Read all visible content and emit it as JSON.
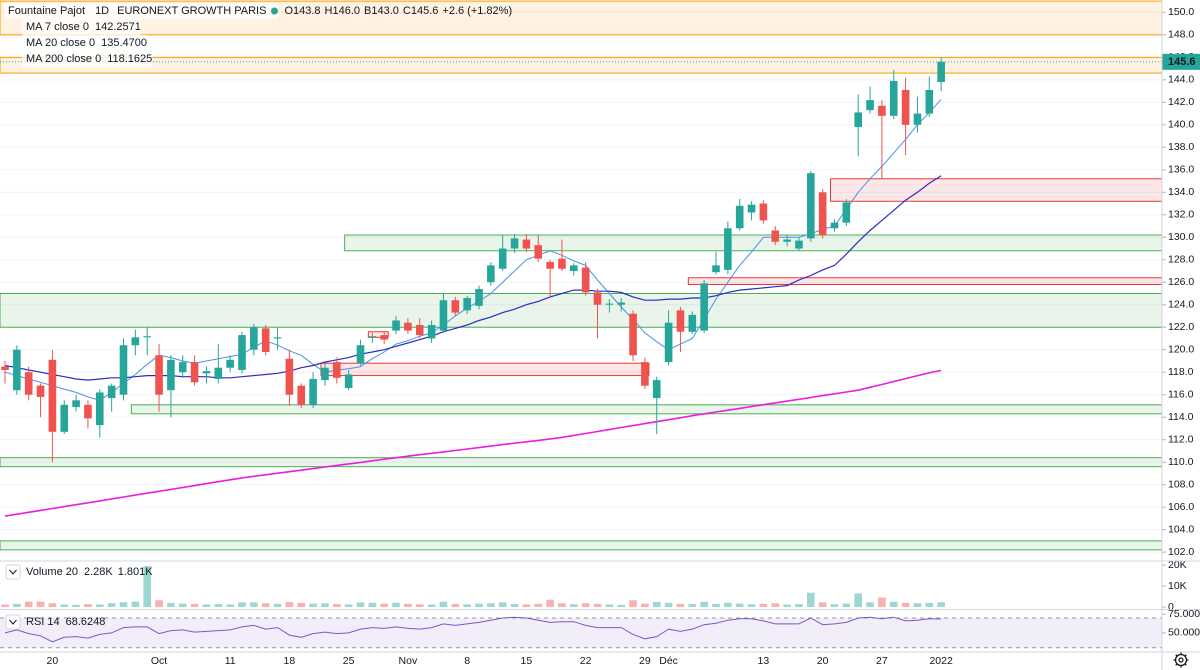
{
  "chart_data": [
    {
      "type": "candlestick",
      "title": "Fountaine Pajot",
      "interval": "1D",
      "exchange": "EURONEXT GROWTH PARIS",
      "quote": [
        "O143.8",
        "H146.0",
        "B143.0",
        "C145.6",
        "+2.6 (+1.82%)"
      ],
      "categories": [
        null,
        null,
        null,
        null,
        "20",
        null,
        null,
        null,
        null,
        null,
        null,
        null,
        null,
        "Oct",
        null,
        null,
        null,
        null,
        null,
        "11",
        null,
        null,
        null,
        null,
        "18",
        null,
        null,
        null,
        null,
        "25",
        null,
        null,
        null,
        null,
        "Nov",
        null,
        null,
        null,
        null,
        "8",
        null,
        null,
        null,
        null,
        "15",
        null,
        null,
        null,
        null,
        "22",
        null,
        null,
        null,
        null,
        "29",
        null,
        "Déc",
        null,
        null,
        null,
        null,
        null,
        null,
        null,
        "13",
        null,
        null,
        null,
        null,
        "20",
        null,
        null,
        null,
        null,
        "27",
        null,
        null,
        null,
        null,
        "2022"
      ],
      "open": [
        118.5,
        116.4,
        118,
        116.8,
        119.1,
        112.7,
        114.9,
        115.1,
        113.3,
        115.7,
        116,
        120.4,
        121.1,
        119.5,
        116.4,
        118,
        118.9,
        117.9,
        117.4,
        118.4,
        118.2,
        120,
        121.9,
        121,
        119.2,
        116.8,
        115.1,
        117.3,
        118.9,
        116.6,
        118.8,
        121.1,
        121.3,
        121.7,
        122.4,
        122.2,
        121,
        121.7,
        124.4,
        123.5,
        123.9,
        126,
        127.2,
        129,
        129.8,
        129.3,
        127.8,
        128.1,
        127,
        127.3,
        125.1,
        124,
        124,
        123.2,
        118.9,
        115.7,
        118.9,
        123.5,
        121.6,
        121.7,
        126.9,
        127.1,
        130.8,
        132.2,
        133,
        130.6,
        129.6,
        129,
        129.9,
        134,
        130.8,
        131.3,
        139.8,
        141.3,
        141.7,
        140.8,
        143.1,
        140,
        141,
        143.8
      ],
      "high": [
        119,
        120.4,
        118.5,
        117,
        120,
        115.5,
        116,
        115.5,
        116.5,
        117,
        121,
        121.8,
        122,
        120.5,
        119.5,
        119.5,
        119.5,
        118.5,
        120.5,
        119.5,
        121.6,
        122.3,
        122.2,
        122,
        120,
        117,
        118,
        118.8,
        119.3,
        118.2,
        120.9,
        121.5,
        121.6,
        123,
        122.8,
        122.8,
        122.6,
        125,
        124.7,
        124.8,
        125.7,
        127.8,
        130.2,
        130.3,
        130.3,
        130.2,
        128,
        129.8,
        127.7,
        127.8,
        125.4,
        124.5,
        124.6,
        123.5,
        119.3,
        117.6,
        123.5,
        123.8,
        123.4,
        126.2,
        128.7,
        131.4,
        133.4,
        133.2,
        133.3,
        131,
        130.2,
        130,
        135.9,
        134.3,
        131.6,
        133.4,
        142.7,
        143.4,
        142.2,
        144.9,
        144.2,
        142.5,
        144.3,
        146
      ],
      "low": [
        117,
        116,
        115.5,
        114,
        110,
        112.5,
        114.5,
        113,
        112.2,
        114.5,
        115.5,
        119.5,
        119.5,
        114.5,
        114,
        117.5,
        116.8,
        117,
        117,
        118,
        117.9,
        119.5,
        119.5,
        120,
        115,
        114.8,
        114.8,
        116.8,
        117,
        116.4,
        118.6,
        120.6,
        120.5,
        121.4,
        121.4,
        121,
        120.6,
        121.5,
        123,
        123.2,
        123.6,
        125.7,
        127,
        128.6,
        128.7,
        127.8,
        124.6,
        127,
        126.6,
        124.8,
        121,
        123.3,
        123.4,
        119,
        116.5,
        112.5,
        118.6,
        119.8,
        121.4,
        121.5,
        126.7,
        126.7,
        130.6,
        131.5,
        131.2,
        129.3,
        129.2,
        128.8,
        129.6,
        129.9,
        130.5,
        131,
        137.2,
        141,
        135.2,
        140.5,
        137.3,
        139.3,
        140.7,
        143
      ],
      "close": [
        118.2,
        120,
        116,
        115.8,
        112.7,
        115.1,
        115.5,
        113.9,
        116.2,
        116.8,
        120.4,
        121.1,
        121.2,
        116,
        119.1,
        118.9,
        117.1,
        118.1,
        118.4,
        119.1,
        121.3,
        122,
        119.8,
        121.1,
        116,
        115.1,
        117.4,
        118.4,
        117.5,
        117.8,
        120.4,
        121.2,
        120.9,
        122.6,
        121.7,
        121.3,
        122.2,
        124.4,
        123.3,
        124.6,
        125.4,
        127.5,
        129,
        129.9,
        129,
        128.1,
        127.2,
        127.2,
        127.5,
        125.1,
        124,
        124.1,
        124.2,
        119.5,
        116.8,
        117.3,
        122.4,
        121.6,
        123.1,
        125.9,
        127.5,
        130.8,
        132.8,
        132.9,
        131.5,
        129.6,
        129.8,
        129.7,
        135.7,
        130.2,
        131.3,
        133.1,
        141.1,
        142.2,
        140.8,
        143.9,
        140,
        141,
        143.1,
        145.6
      ],
      "up_color": "#26a69a",
      "down_color": "#ef5350",
      "ylim": [
        101.3,
        151.1
      ],
      "yticks": [
        {
          "value": 150,
          "label": "150.0"
        },
        {
          "value": 148,
          "label": "148.0"
        },
        {
          "value": 146,
          "label": "146.0"
        },
        {
          "value": 144,
          "label": "144.0"
        },
        {
          "value": 142,
          "label": "142.0"
        },
        {
          "value": 140,
          "label": "140.0"
        },
        {
          "value": 138,
          "label": "138.0"
        },
        {
          "value": 136,
          "label": "136.0"
        },
        {
          "value": 134,
          "label": "134.0"
        },
        {
          "value": 132,
          "label": "132.0"
        },
        {
          "value": 130,
          "label": "130.0"
        },
        {
          "value": 128,
          "label": "128.0"
        },
        {
          "value": 126,
          "label": "126.0"
        },
        {
          "value": 124,
          "label": "124.0"
        },
        {
          "value": 122,
          "label": "122.0"
        },
        {
          "value": 120,
          "label": "120.0"
        },
        {
          "value": 118,
          "label": "118.0"
        },
        {
          "value": 116,
          "label": "116.0"
        },
        {
          "value": 114,
          "label": "114.0"
        },
        {
          "value": 112,
          "label": "112.0"
        },
        {
          "value": 110,
          "label": "110.0"
        },
        {
          "value": 108,
          "label": "108.0"
        },
        {
          "value": 106,
          "label": "106.0"
        },
        {
          "value": 104,
          "label": "104.0"
        },
        {
          "value": 102,
          "label": "102.0"
        }
      ],
      "grid": true,
      "series": [
        {
          "name": "MA 7 close 0",
          "legend_value": "142.2571",
          "color": "#4a8fe8",
          "width": 1,
          "values": [
            118,
            117.7,
            117.4,
            117.1,
            116.8,
            116.5,
            116.2,
            115.8,
            115.5,
            116.2,
            117,
            117.8,
            118.7,
            119.5,
            119.3,
            119,
            118.8,
            119,
            119.2,
            119.4,
            119.6,
            120.2,
            120.8,
            120.4,
            119.9,
            119.5,
            118.7,
            118,
            118.2,
            118.3,
            118.5,
            119.2,
            119.8,
            120.5,
            120.8,
            121.2,
            121.5,
            122.2,
            123,
            123.7,
            124.3,
            125,
            126,
            127,
            128,
            128.4,
            128.8,
            128.4,
            127.9,
            127.5,
            126.2,
            125,
            123.8,
            122.7,
            121.5,
            120.7,
            120,
            120.5,
            121,
            122.7,
            124.5,
            126,
            127.5,
            128.7,
            130,
            130,
            130,
            130,
            130.3,
            130.7,
            131,
            132.5,
            134,
            135.2,
            136.3,
            137.5,
            138.7,
            140,
            141.1,
            142.26
          ]
        },
        {
          "name": "MA 20 close 0",
          "legend_value": "135.4700",
          "color": "#2b2bc4",
          "width": 1.2,
          "values": [
            118.6,
            118.4,
            118.2,
            118,
            117.8,
            117.6,
            117.4,
            117.3,
            117.4,
            117.5,
            117.5,
            117.6,
            117.7,
            117.7,
            117.7,
            117.6,
            117.6,
            117.6,
            117.5,
            117.5,
            117.6,
            117.7,
            117.8,
            117.9,
            118.1,
            118.4,
            118.6,
            118.9,
            119.1,
            119.3,
            119.6,
            119.8,
            120,
            120.3,
            120.6,
            120.9,
            121.2,
            121.6,
            121.9,
            122.2,
            122.6,
            122.9,
            123.3,
            123.6,
            124,
            124.3,
            124.7,
            125,
            125.3,
            125.3,
            125.2,
            125.2,
            125.1,
            124.7,
            124.4,
            124.4,
            124.5,
            124.5,
            124.6,
            124.6,
            124.8,
            125.1,
            125.3,
            125.4,
            125.5,
            125.6,
            125.7,
            126.2,
            126.6,
            127.1,
            127.5,
            128.5,
            129.6,
            130.6,
            131.5,
            132.4,
            133.3,
            134,
            134.8,
            135.47
          ]
        },
        {
          "name": "MA 200 close 0",
          "legend_value": "118.1625",
          "color": "#e91ee0",
          "width": 1.6,
          "values": [
            105.2,
            105.37,
            105.54,
            105.71,
            105.88,
            106.05,
            106.22,
            106.39,
            106.56,
            106.73,
            106.9,
            107.07,
            107.24,
            107.41,
            107.58,
            107.75,
            107.92,
            108.09,
            108.26,
            108.43,
            108.6,
            108.74,
            108.88,
            109.02,
            109.15,
            109.29,
            109.43,
            109.57,
            109.71,
            109.85,
            109.98,
            110.12,
            110.26,
            110.4,
            110.53,
            110.66,
            110.79,
            110.91,
            111.04,
            111.17,
            111.3,
            111.43,
            111.56,
            111.69,
            111.81,
            111.94,
            112.07,
            112.2,
            112.38,
            112.55,
            112.73,
            112.9,
            113.08,
            113.25,
            113.43,
            113.6,
            113.78,
            113.95,
            114.13,
            114.3,
            114.46,
            114.62,
            114.78,
            114.95,
            115.11,
            115.27,
            115.43,
            115.59,
            115.75,
            115.92,
            116.08,
            116.24,
            116.4,
            116.66,
            116.91,
            117.17,
            117.43,
            117.69,
            117.94,
            118.16
          ]
        }
      ],
      "zones": [
        {
          "low": 148,
          "high": 151,
          "start": 0,
          "extend_right": true,
          "color": "#ff9800"
        },
        {
          "low": 144.6,
          "high": 146,
          "start": 0,
          "extend_right": true,
          "color": "#ff9800"
        },
        {
          "low": 133.2,
          "high": 135.2,
          "start": 70,
          "extend_right": true,
          "color": "#e53935"
        },
        {
          "low": 128.8,
          "high": 130.2,
          "start": 29,
          "extend_right": true,
          "color": "#4caf50"
        },
        {
          "low": 125.8,
          "high": 126.4,
          "start": 58,
          "extend_right": true,
          "color": "#e53935"
        },
        {
          "low": 122,
          "high": 125,
          "start": 0,
          "extend_right": true,
          "color": "#4caf50"
        },
        {
          "low": 121.1,
          "high": 121.6,
          "start": 31,
          "end": 32,
          "color": "#e53935"
        },
        {
          "low": 117.7,
          "high": 118.8,
          "start": 27,
          "end": 54,
          "color": "#e53935"
        },
        {
          "low": 114.3,
          "high": 115.1,
          "start": 11,
          "extend_right": true,
          "color": "#4caf50"
        },
        {
          "low": 109.6,
          "high": 110.4,
          "start": 0,
          "extend_right": true,
          "color": "#4caf50"
        },
        {
          "low": 102.2,
          "high": 103,
          "start": 0,
          "extend_right": true,
          "color": "#4caf50"
        }
      ]
    },
    {
      "type": "bar",
      "title": "Volume 20",
      "legend_values": [
        "2.28K",
        "1.801K"
      ],
      "values": [
        1200,
        1500,
        2600,
        2600,
        1800,
        1200,
        1000,
        1400,
        1200,
        1800,
        2300,
        2600,
        19500,
        3200,
        2000,
        1600,
        1500,
        1200,
        1400,
        1200,
        2200,
        2200,
        1800,
        1500,
        2400,
        2000,
        1600,
        1800,
        1400,
        1200,
        2200,
        2000,
        1600,
        2000,
        1500,
        1300,
        1200,
        2500,
        1500,
        1300,
        1600,
        1800,
        2200,
        1400,
        1200,
        1500,
        3500,
        1800,
        1300,
        1800,
        1500,
        1200,
        1000,
        3200,
        1600,
        2400,
        2000,
        1500,
        1400,
        2500,
        1500,
        2000,
        1600,
        1300,
        1500,
        1800,
        1200,
        1400,
        6800,
        2200,
        1300,
        1600,
        6500,
        2200,
        4500,
        2500,
        2000,
        1800,
        2000,
        2280
      ],
      "ylim": [
        0,
        21000
      ],
      "yticks": [
        {
          "value": 20000,
          "label": "20K"
        },
        {
          "value": 10000,
          "label": "10K"
        },
        0
      ]
    },
    {
      "type": "line",
      "title": "RSI 14",
      "legend_value": "68.6248",
      "color": "#7e57c2",
      "values": [
        50,
        54,
        49,
        46,
        38,
        44,
        45,
        43,
        48,
        50,
        57,
        58,
        58,
        49,
        53,
        54,
        51,
        52,
        53,
        54,
        58,
        60,
        55,
        57,
        47,
        44,
        49,
        51,
        49,
        50,
        55,
        57,
        56,
        58,
        56,
        55,
        57,
        62,
        60,
        62,
        64,
        67,
        70,
        71,
        70,
        67,
        64,
        65,
        65,
        60,
        57,
        57,
        57,
        48,
        42,
        45,
        55,
        52,
        55,
        61,
        63,
        67,
        69,
        69,
        66,
        62,
        62,
        62,
        70,
        61,
        62,
        64,
        70,
        71,
        69,
        71,
        66,
        67,
        69,
        68.62
      ],
      "band": [
        30,
        70
      ],
      "ylim": [
        27,
        78
      ],
      "yticks": [
        {
          "value": 75,
          "label": "75.0000"
        },
        {
          "value": 50,
          "label": "50.0000"
        }
      ]
    }
  ]
}
